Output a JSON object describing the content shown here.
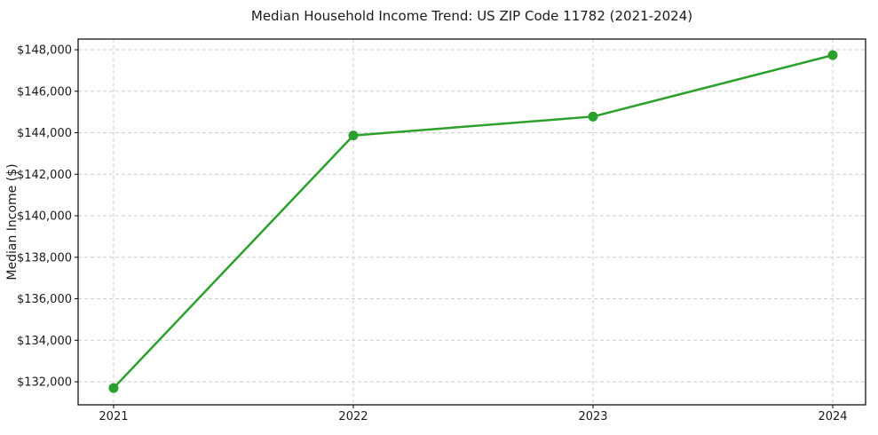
{
  "chart_data": {
    "type": "line",
    "title": "Median Household Income Trend: US ZIP Code 11782 (2021-2024)",
    "xlabel": "",
    "ylabel": "Median Income ($)",
    "x": [
      2021,
      2022,
      2023,
      2024
    ],
    "x_tick_labels": [
      "2021",
      "2022",
      "2023",
      "2024"
    ],
    "series": [
      {
        "name": "Median Household Income",
        "values": [
          131700,
          143870,
          144780,
          147740
        ]
      }
    ],
    "y_ticks": [
      132000,
      134000,
      136000,
      138000,
      140000,
      142000,
      144000,
      146000,
      148000
    ],
    "y_tick_labels": [
      "$132,000",
      "$134,000",
      "$136,000",
      "$138,000",
      "$140,000",
      "$142,000",
      "$144,000",
      "$146,000",
      "$148,000"
    ],
    "xlim": [
      2020.852,
      2024.137
    ],
    "ylim": [
      130890,
      148515
    ],
    "grid": true,
    "grid_style": "dashed",
    "legend": "none",
    "marker": "circle",
    "colors": {
      "line": "#2ca02c",
      "grid": "#cecece",
      "spine": "#000000",
      "text": "#1a1a1a",
      "background": "#ffffff"
    }
  }
}
